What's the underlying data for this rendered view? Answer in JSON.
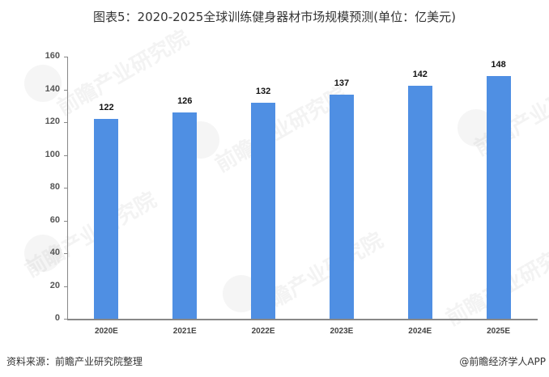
{
  "title": "图表5：2020-2025全球训练健身器材市场规模预测(单位：亿美元)",
  "footer": {
    "source": "资料来源：前瞻产业研究院整理",
    "credit": "@前瞻经济学人APP"
  },
  "watermark": {
    "text": "前瞻产业研究院"
  },
  "colors": {
    "bar": "#4f8fe3",
    "axis": "#888888"
  },
  "y_ticks": [
    "0",
    "20",
    "40",
    "60",
    "80",
    "100",
    "120",
    "140",
    "160"
  ],
  "bars": [
    {
      "category": "2020E",
      "value": 122,
      "label": "122"
    },
    {
      "category": "2021E",
      "value": 126,
      "label": "126"
    },
    {
      "category": "2022E",
      "value": 132,
      "label": "132"
    },
    {
      "category": "2023E",
      "value": 137,
      "label": "137"
    },
    {
      "category": "2024E",
      "value": 142,
      "label": "142"
    },
    {
      "category": "2025E",
      "value": 148,
      "label": "148"
    }
  ],
  "chart_data": {
    "type": "bar",
    "title": "图表5：2020-2025全球训练健身器材市场规模预测(单位：亿美元)",
    "categories": [
      "2020E",
      "2021E",
      "2022E",
      "2023E",
      "2024E",
      "2025E"
    ],
    "values": [
      122,
      126,
      132,
      137,
      142,
      148
    ],
    "xlabel": "",
    "ylabel": "",
    "unit": "亿美元",
    "ylim": [
      0,
      160
    ],
    "y_ticks": [
      0,
      20,
      40,
      60,
      80,
      100,
      120,
      140,
      160
    ],
    "grid": false,
    "legend": null,
    "data_labels": true,
    "source": "资料来源：前瞻产业研究院整理"
  }
}
